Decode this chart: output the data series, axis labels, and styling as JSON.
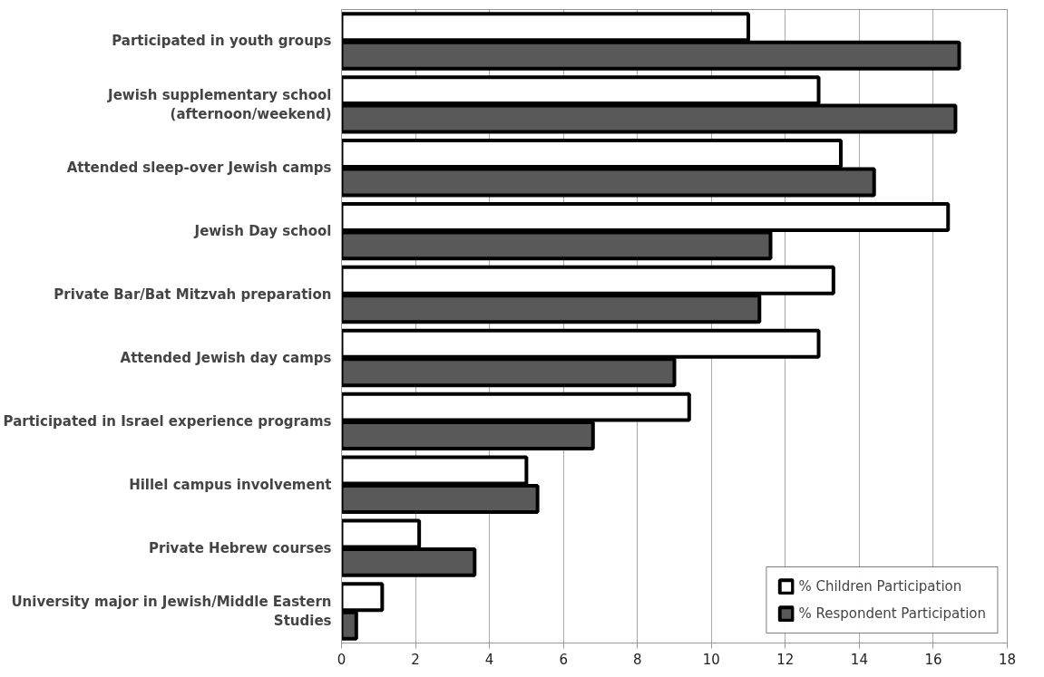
{
  "chart_data": {
    "type": "bar",
    "orientation": "horizontal",
    "categories": [
      "Participated in youth groups",
      "Jewish supplementary school (afternoon/weekend)",
      "Attended sleep-over Jewish camps",
      "Jewish Day school",
      "Private Bar/Bat Mitzvah preparation",
      "Attended Jewish day camps",
      "Participated in Israel experience programs",
      "Hillel campus involvement",
      "Private Hebrew courses",
      "University major in Jewish/Middle Eastern Studies"
    ],
    "series": [
      {
        "name": "% Children Participation",
        "color": "#ffffff",
        "values": [
          11.0,
          12.9,
          13.5,
          16.4,
          13.3,
          12.9,
          9.4,
          5.0,
          2.1,
          1.1
        ]
      },
      {
        "name": "% Respondent Participation",
        "color": "#595959",
        "values": [
          16.7,
          16.6,
          14.4,
          11.6,
          11.3,
          9.0,
          6.8,
          5.3,
          3.6,
          0.4
        ]
      }
    ],
    "xlim": [
      0,
      18
    ],
    "xticks": [
      0,
      2,
      4,
      6,
      8,
      10,
      12,
      14,
      16,
      18
    ],
    "grid": "x",
    "legend": "bottom right"
  }
}
